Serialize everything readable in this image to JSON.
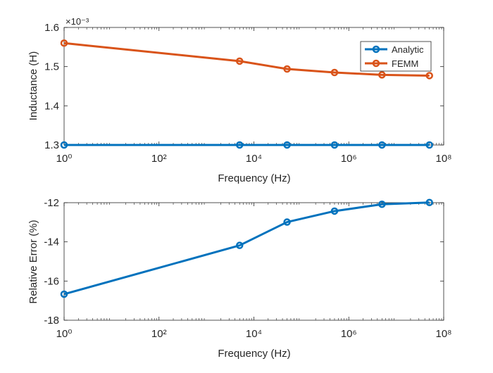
{
  "colors": {
    "analytic": "#0072BD",
    "femm": "#D95319",
    "axis": "#262626"
  },
  "chart_data": [
    {
      "type": "line",
      "xscale": "log",
      "xlim": [
        1,
        100000000
      ],
      "ylim": [
        1.3,
        1.6
      ],
      "xlabel": "Frequency (Hz)",
      "ylabel": "Inductance (H)",
      "y_exponent_label": "×10⁻³",
      "x_ticks": [
        1,
        100,
        10000,
        1000000,
        100000000
      ],
      "x_tick_labels": [
        "10⁰",
        "10²",
        "10⁴",
        "10⁶",
        "10⁸"
      ],
      "y_ticks": [
        1.3,
        1.4,
        1.5,
        1.6
      ],
      "y_tick_labels": [
        "1.3",
        "1.4",
        "1.5",
        "1.6"
      ],
      "grid": false,
      "legend_position": "top-right",
      "series": [
        {
          "name": "Analytic",
          "color": "#0072BD",
          "marker": "circle",
          "x": [
            1,
            5000,
            50000,
            500000,
            5000000,
            50000000
          ],
          "y": [
            1.3,
            1.3,
            1.3,
            1.3,
            1.3,
            1.3
          ]
        },
        {
          "name": "FEMM",
          "color": "#D95319",
          "marker": "circle",
          "x": [
            1,
            5000,
            50000,
            500000,
            5000000,
            50000000
          ],
          "y": [
            1.56,
            1.514,
            1.494,
            1.485,
            1.479,
            1.477
          ]
        }
      ]
    },
    {
      "type": "line",
      "xscale": "log",
      "xlim": [
        1,
        100000000
      ],
      "ylim": [
        -18,
        -12
      ],
      "xlabel": "Frequency (Hz)",
      "ylabel": "Relative Error (%)",
      "x_ticks": [
        1,
        100,
        10000,
        1000000,
        100000000
      ],
      "x_tick_labels": [
        "10⁰",
        "10²",
        "10⁴",
        "10⁶",
        "10⁸"
      ],
      "y_ticks": [
        -18,
        -16,
        -14,
        -12
      ],
      "y_tick_labels": [
        "-18",
        "-16",
        "-14",
        "-12"
      ],
      "grid": false,
      "series": [
        {
          "color": "#0072BD",
          "marker": "circle",
          "x": [
            1,
            5000,
            50000,
            500000,
            5000000,
            50000000
          ],
          "y": [
            -16.67,
            -14.18,
            -12.99,
            -12.43,
            -12.08,
            -11.99
          ]
        }
      ]
    }
  ]
}
